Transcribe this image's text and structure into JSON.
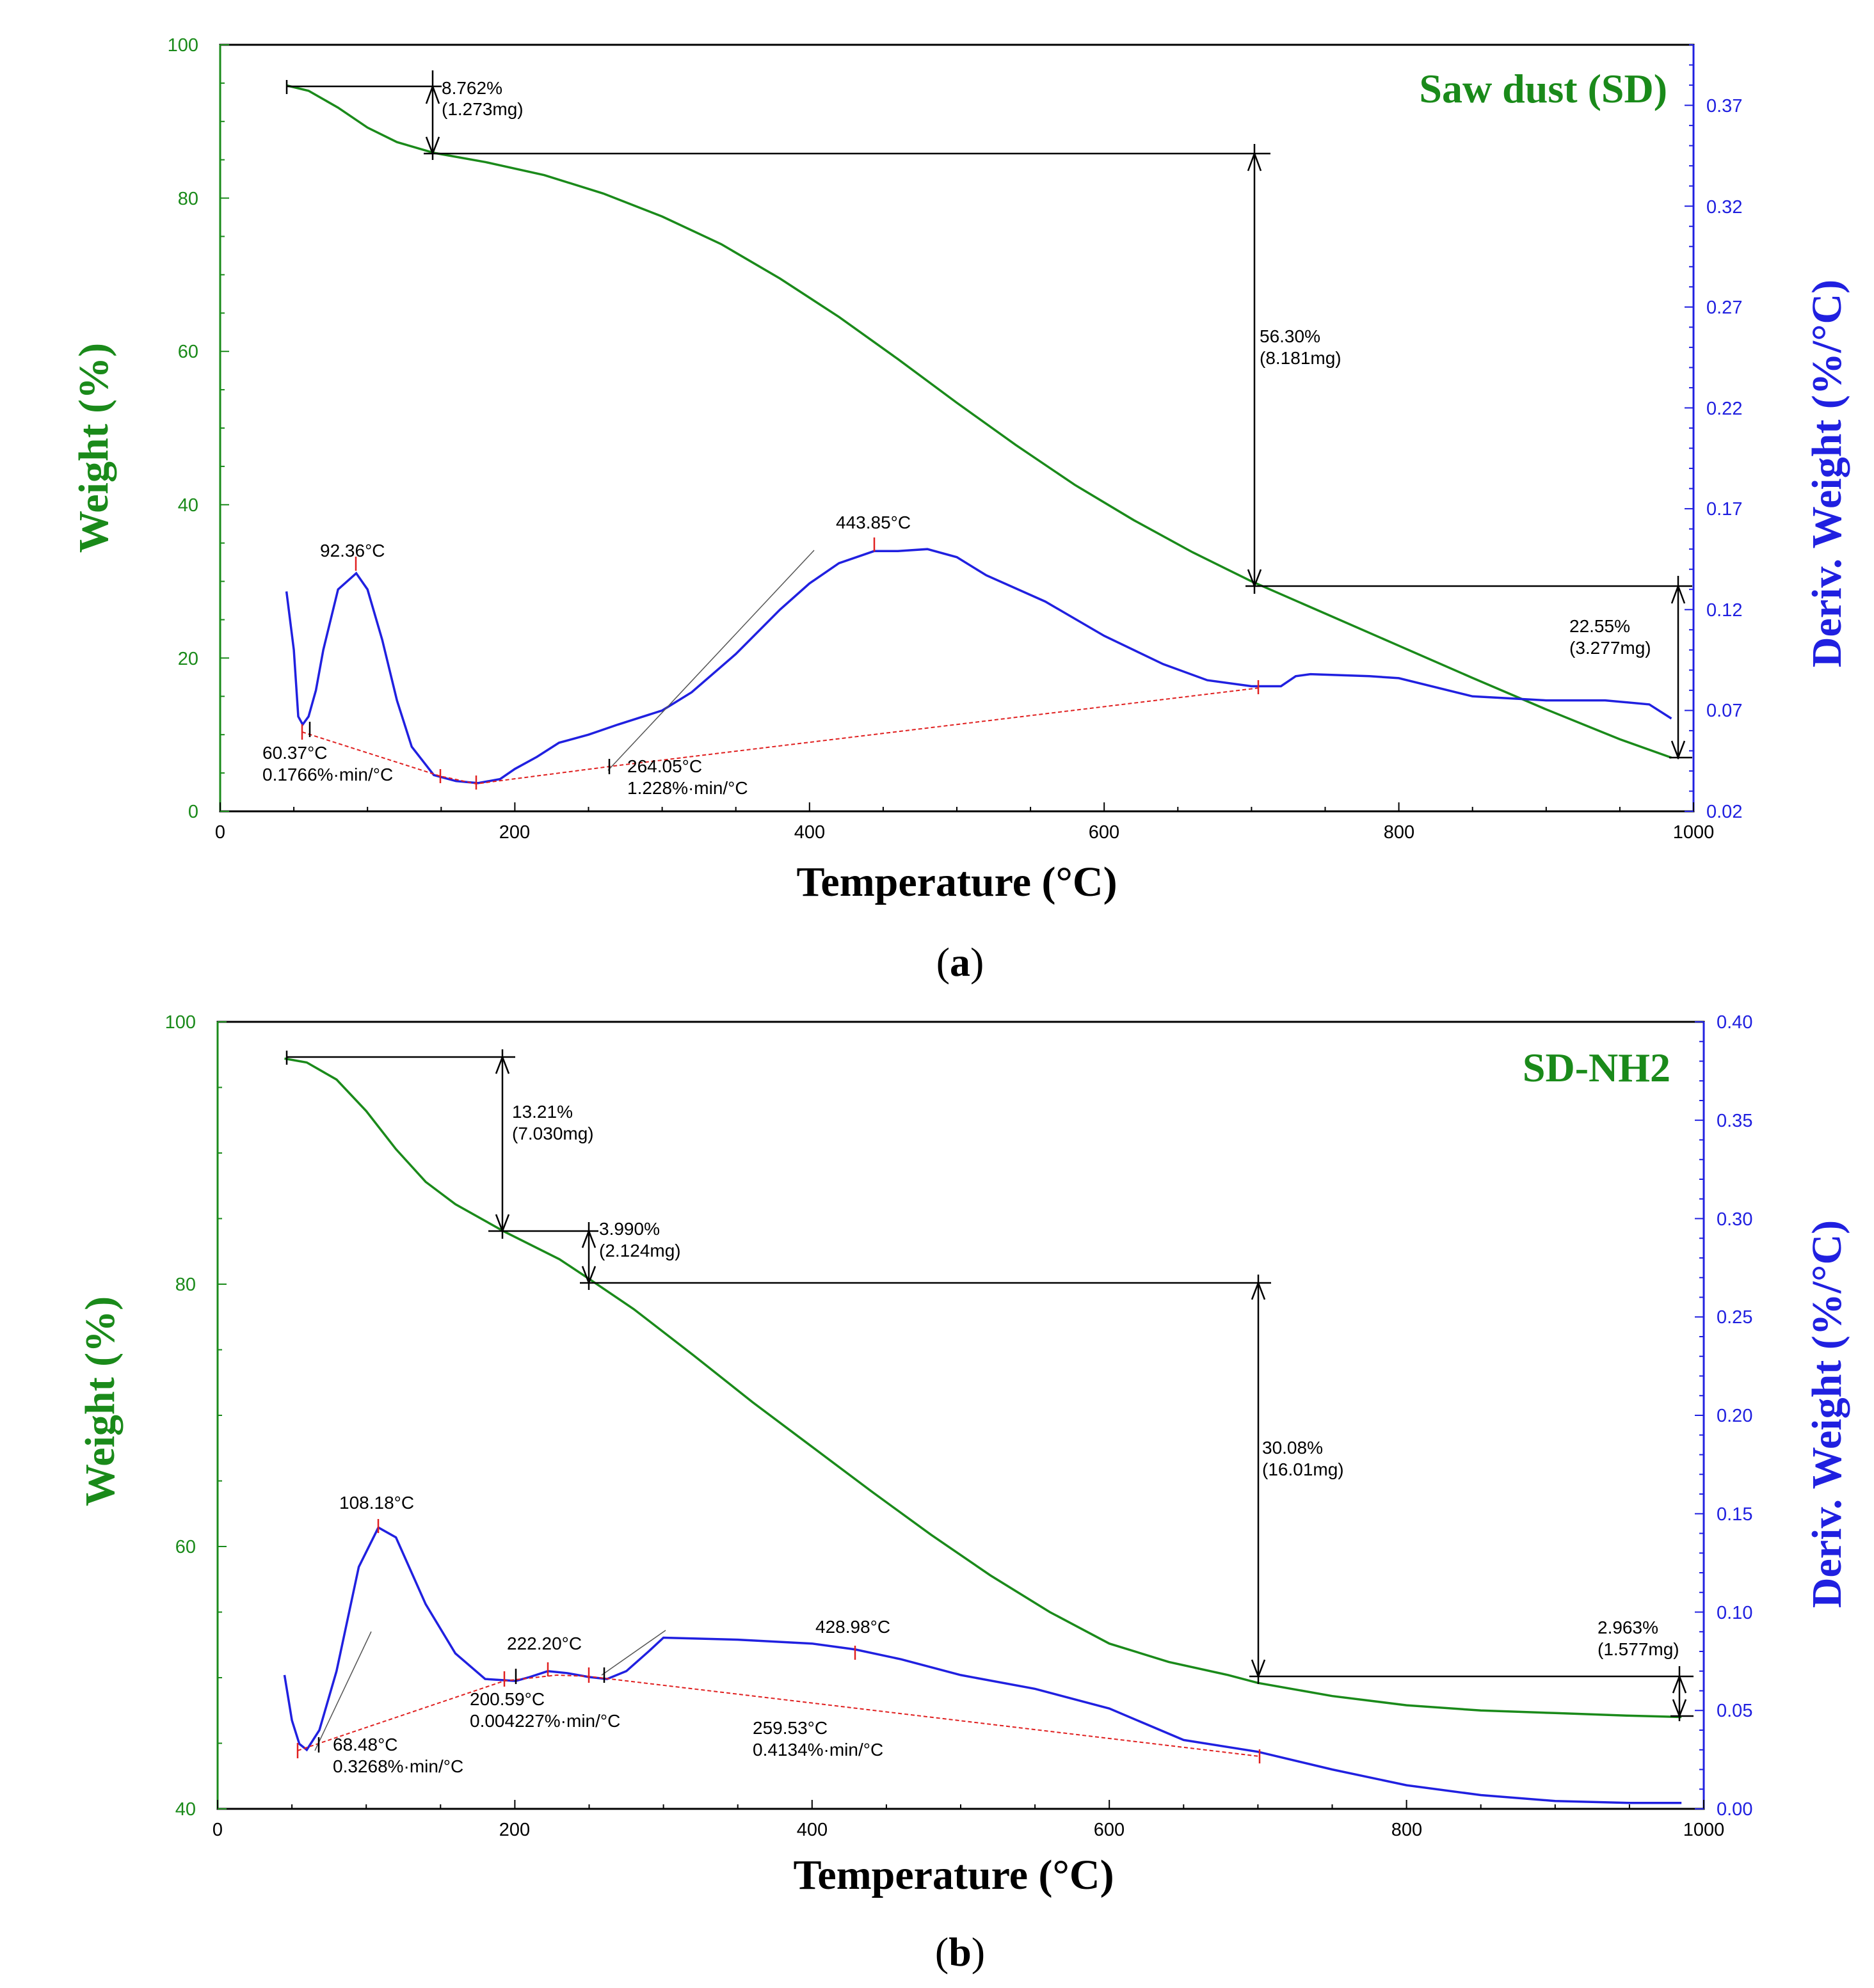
{
  "charts": [
    {
      "panel": "a",
      "caption": {
        "open": "(",
        "letter": "a",
        "close": ")"
      },
      "title": "Saw dust (SD)",
      "xlabel": "Temperature (°C)",
      "ylabel_left": "Weight (%)",
      "ylabel_right": "Deriv. Weight (%/°C)",
      "x_ticks": [
        "0",
        "200",
        "400",
        "600",
        "800",
        "1000"
      ],
      "y_left_ticks": [
        "0",
        "20",
        "40",
        "60",
        "80",
        "100"
      ],
      "y_right_ticks": [
        "0.02",
        "0.07",
        "0.12",
        "0.17",
        "0.22",
        "0.27",
        "0.32",
        "0.37"
      ],
      "steps": [
        {
          "pct": "8.762%",
          "mass": "(1.273mg)"
        },
        {
          "pct": "56.30%",
          "mass": "(8.181mg)"
        },
        {
          "pct": "22.55%",
          "mass": "(3.277mg)"
        }
      ],
      "peaks": [
        "92.36°C",
        "443.85°C"
      ],
      "onsets": [
        {
          "temp": "60.37°C",
          "rate": "0.1766%·min/°C"
        },
        {
          "temp": "264.05°C",
          "rate": "1.228%·min/°C"
        }
      ]
    },
    {
      "panel": "b",
      "caption": {
        "open": "(",
        "letter": "b",
        "close": ")"
      },
      "title": "SD-NH2",
      "xlabel": "Temperature (°C)",
      "ylabel_left": "Weight (%)",
      "ylabel_right": "Deriv. Weight (%/°C)",
      "x_ticks": [
        "0",
        "200",
        "400",
        "600",
        "800",
        "1000"
      ],
      "y_left_ticks": [
        "40",
        "60",
        "80",
        "100"
      ],
      "y_right_ticks": [
        "0.00",
        "0.05",
        "0.10",
        "0.15",
        "0.20",
        "0.25",
        "0.30",
        "0.35",
        "0.40"
      ],
      "steps": [
        {
          "pct": "13.21%",
          "mass": "(7.030mg)"
        },
        {
          "pct": "3.990%",
          "mass": "(2.124mg)"
        },
        {
          "pct": "30.08%",
          "mass": "(16.01mg)"
        },
        {
          "pct": "2.963%",
          "mass": "(1.577mg)"
        }
      ],
      "peaks": [
        "108.18°C",
        "222.20°C",
        "428.98°C"
      ],
      "onsets": [
        {
          "temp": "68.48°C",
          "rate": "0.3268%·min/°C"
        },
        {
          "temp": "200.59°C",
          "rate": "0.004227%·min/°C"
        },
        {
          "temp": "259.53°C",
          "rate": "0.4134%·min/°C"
        }
      ]
    }
  ],
  "chart_data": [
    {
      "type": "line",
      "title": "Saw dust (SD)",
      "xlabel": "Temperature (°C)",
      "ylabel": "Weight (%)",
      "y2label": "Deriv. Weight (%/°C)",
      "xlim": [
        0,
        1000
      ],
      "ylim": [
        0,
        100
      ],
      "y2lim": [
        0.02,
        0.4
      ],
      "series": [
        {
          "name": "Weight (%)",
          "axis": "left",
          "color": "#1a8a1a",
          "x": [
            45,
            60,
            80,
            100,
            120,
            145,
            180,
            220,
            260,
            300,
            340,
            380,
            420,
            460,
            500,
            540,
            580,
            620,
            660,
            700,
            750,
            800,
            850,
            900,
            950,
            985
          ],
          "y": [
            94.7,
            94.0,
            91.8,
            89.2,
            87.3,
            85.9,
            84.7,
            83.0,
            80.6,
            77.6,
            74.0,
            69.5,
            64.5,
            59.0,
            53.3,
            47.8,
            42.6,
            38.0,
            33.8,
            30.0,
            25.8,
            21.6,
            17.4,
            13.3,
            9.4,
            7.0
          ]
        },
        {
          "name": "Deriv. Weight (%/°C)",
          "axis": "right",
          "color": "#2020e0",
          "x": [
            45,
            50,
            53,
            56,
            60,
            65,
            70,
            80,
            92.36,
            100,
            110,
            120,
            130,
            145,
            160,
            175,
            190,
            200,
            215,
            230,
            250,
            270,
            300,
            320,
            350,
            380,
            400,
            420,
            443.85,
            460,
            480,
            500,
            520,
            560,
            600,
            640,
            670,
            700,
            720,
            730,
            740,
            780,
            800,
            850,
            900,
            940,
            970,
            985
          ],
          "y": [
            0.129,
            0.1,
            0.067,
            0.063,
            0.067,
            0.08,
            0.1,
            0.13,
            0.138,
            0.13,
            0.105,
            0.075,
            0.052,
            0.038,
            0.035,
            0.034,
            0.036,
            0.041,
            0.047,
            0.054,
            0.058,
            0.063,
            0.07,
            0.079,
            0.098,
            0.12,
            0.133,
            0.143,
            0.149,
            0.149,
            0.15,
            0.146,
            0.137,
            0.124,
            0.107,
            0.093,
            0.085,
            0.082,
            0.082,
            0.087,
            0.088,
            0.087,
            0.086,
            0.077,
            0.075,
            0.075,
            0.073,
            0.066
          ]
        }
      ]
    },
    {
      "type": "line",
      "title": "SD-NH2",
      "xlabel": "Temperature (°C)",
      "ylabel": "Weight (%)",
      "y2label": "Deriv. Weight (%/°C)",
      "xlim": [
        0,
        1000
      ],
      "ylim": [
        40,
        100
      ],
      "y2lim": [
        0.0,
        0.4
      ],
      "series": [
        {
          "name": "Weight (%)",
          "axis": "left",
          "color": "#1a8a1a",
          "x": [
            45,
            60,
            80,
            100,
            120,
            140,
            160,
            193,
            230,
            250,
            280,
            320,
            360,
            400,
            440,
            480,
            520,
            560,
            600,
            640,
            680,
            700,
            750,
            800,
            850,
            900,
            950,
            985
          ],
          "y": [
            97.2,
            96.9,
            95.6,
            93.2,
            90.3,
            87.8,
            86.1,
            84.0,
            81.9,
            80.4,
            78.1,
            74.6,
            71.0,
            67.6,
            64.2,
            60.9,
            57.8,
            55.0,
            52.6,
            51.2,
            50.2,
            49.6,
            48.6,
            47.9,
            47.5,
            47.3,
            47.1,
            47.0
          ]
        },
        {
          "name": "Deriv. Weight (%/°C)",
          "axis": "right",
          "color": "#2020e0",
          "x": [
            45,
            50,
            55,
            60,
            68.48,
            80,
            95,
            108.18,
            120,
            140,
            160,
            180,
            200.59,
            210,
            222.2,
            235,
            250,
            262,
            275,
            290,
            300,
            350,
            400,
            428.98,
            460,
            500,
            550,
            600,
            650,
            700,
            750,
            800,
            850,
            900,
            950,
            985
          ],
          "y": [
            0.068,
            0.045,
            0.033,
            0.03,
            0.04,
            0.07,
            0.123,
            0.143,
            0.138,
            0.104,
            0.079,
            0.066,
            0.065,
            0.067,
            0.07,
            0.069,
            0.067,
            0.066,
            0.07,
            0.08,
            0.087,
            0.086,
            0.084,
            0.081,
            0.076,
            0.068,
            0.061,
            0.051,
            0.035,
            0.029,
            0.02,
            0.012,
            0.007,
            0.004,
            0.003,
            0.003
          ]
        }
      ]
    }
  ]
}
